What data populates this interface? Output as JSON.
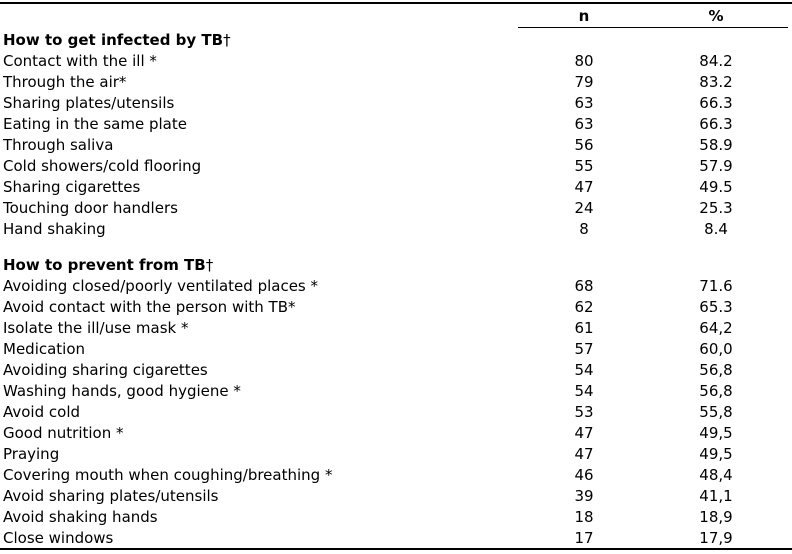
{
  "page": {
    "background": "#ffffff",
    "text_color": "#000000"
  },
  "table": {
    "header": {
      "n": "n",
      "pct": "%"
    },
    "sections": [
      {
        "title": "How to get infected by TB",
        "marker": "†",
        "rows": [
          {
            "label": "Contact with the ill *",
            "n": "80",
            "pct": "84.2"
          },
          {
            "label": "Through the air*",
            "n": "79",
            "pct": "83.2"
          },
          {
            "label": "Sharing plates/utensils",
            "n": "63",
            "pct": "66.3"
          },
          {
            "label": "Eating in the same plate",
            "n": "63",
            "pct": "66.3"
          },
          {
            "label": "Through saliva",
            "n": "56",
            "pct": "58.9"
          },
          {
            "label": "Cold showers/cold flooring",
            "n": "55",
            "pct": "57.9"
          },
          {
            "label": "Sharing cigarettes",
            "n": "47",
            "pct": "49.5"
          },
          {
            "label": "Touching door handlers",
            "n": "24",
            "pct": "25.3"
          },
          {
            "label": "Hand shaking",
            "n": "8",
            "pct": "8.4"
          }
        ]
      },
      {
        "title": "How to prevent from TB",
        "marker": "†",
        "rows": [
          {
            "label": "Avoiding closed/poorly ventilated places *",
            "n": "68",
            "pct": "71.6"
          },
          {
            "label": "Avoid contact with the person with TB*",
            "n": "62",
            "pct": "65.3"
          },
          {
            "label": "Isolate the ill/use mask *",
            "n": "61",
            "pct": "64,2"
          },
          {
            "label": "Medication",
            "n": "57",
            "pct": "60,0"
          },
          {
            "label": "Avoiding sharing cigarettes",
            "n": "54",
            "pct": "56,8"
          },
          {
            "label": "Washing hands, good hygiene *",
            "n": "54",
            "pct": "56,8"
          },
          {
            "label": "Avoid cold",
            "n": "53",
            "pct": "55,8"
          },
          {
            "label": "Good nutrition *",
            "n": "47",
            "pct": "49,5"
          },
          {
            "label": "Praying",
            "n": "47",
            "pct": "49,5"
          },
          {
            "label": "Covering mouth when coughing/breathing *",
            "n": "46",
            "pct": "48,4"
          },
          {
            "label": "Avoid sharing plates/utensils",
            "n": "39",
            "pct": "41,1"
          },
          {
            "label": "Avoid shaking hands",
            "n": "18",
            "pct": "18,9"
          },
          {
            "label": "Close windows",
            "n": "17",
            "pct": "17,9"
          }
        ]
      }
    ]
  }
}
